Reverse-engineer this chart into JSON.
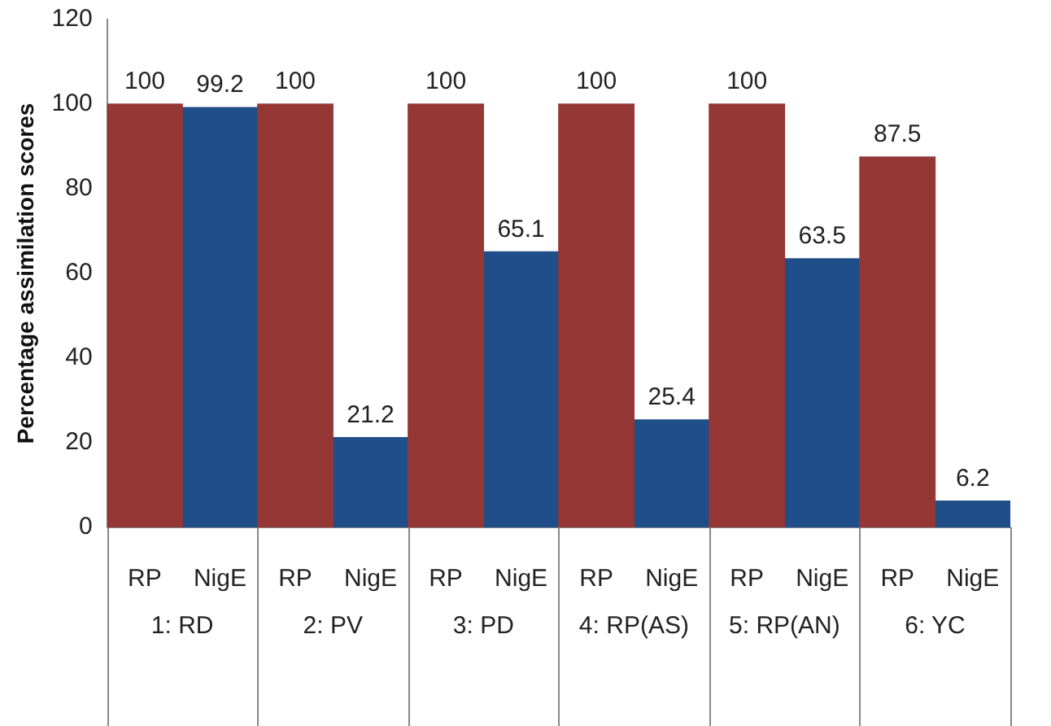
{
  "chart_data": {
    "type": "bar",
    "ylabel": "Percentage assimilation scores",
    "categories": [
      "1: RD",
      "2: PV",
      "3: PD",
      "4: RP(AS)",
      "5: RP(AN)",
      "6: YC"
    ],
    "series": [
      {
        "name": "RP",
        "color": "#953735",
        "values": [
          100,
          100,
          100,
          100,
          100,
          87.5
        ]
      },
      {
        "name": "NigE",
        "color": "#1f4e89",
        "values": [
          99.2,
          21.2,
          65.1,
          25.4,
          63.5,
          6.2
        ]
      }
    ],
    "ylim": [
      0,
      120
    ],
    "yticks": [
      0,
      20,
      40,
      60,
      80,
      100,
      120
    ],
    "grid": false,
    "legend": false,
    "data_labels": true
  }
}
